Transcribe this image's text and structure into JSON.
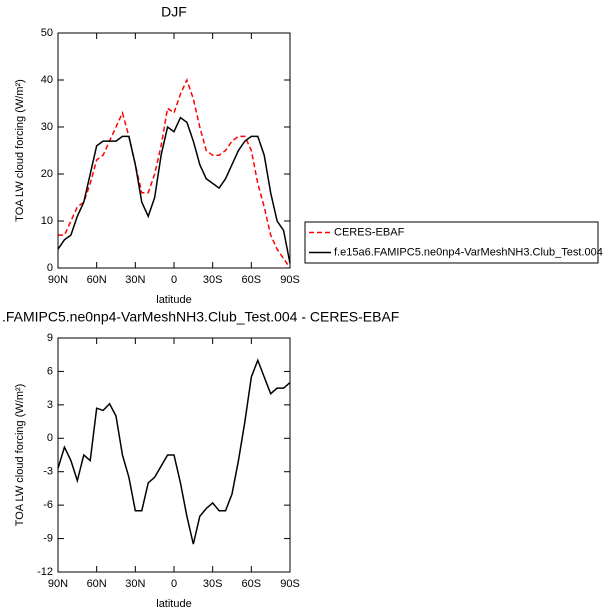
{
  "chart_data": [
    {
      "type": "line",
      "title": "DJF",
      "x_label": "latitude",
      "y_label": "TOA LW cloud forcing (W/m²)",
      "x": [
        90,
        85,
        80,
        75,
        70,
        65,
        60,
        55,
        50,
        45,
        40,
        35,
        30,
        25,
        20,
        15,
        10,
        5,
        0,
        -5,
        -10,
        -15,
        -20,
        -25,
        -30,
        -35,
        -40,
        -45,
        -50,
        -55,
        -60,
        -65,
        -70,
        -75,
        -80,
        -85,
        -90
      ],
      "xlim": [
        90,
        -90
      ],
      "xticks": [
        {
          "value": 90,
          "label": "90N"
        },
        {
          "value": 60,
          "label": "60N"
        },
        {
          "value": 30,
          "label": "30N"
        },
        0,
        {
          "value": -30,
          "label": "30S"
        },
        {
          "value": -60,
          "label": "60S"
        },
        {
          "value": -90,
          "label": "90S"
        }
      ],
      "ylim": [
        0,
        50
      ],
      "yticks": [
        0,
        10,
        20,
        30,
        40,
        50
      ],
      "legend": "right",
      "series": [
        {
          "name": "CERES-EBAF",
          "color": "#ff0000",
          "style": "dashed",
          "values": [
            7,
            7,
            10,
            13,
            14,
            18,
            23,
            24,
            27,
            30,
            33,
            28,
            22,
            16,
            16,
            20,
            26,
            34,
            33,
            37,
            40,
            36,
            30,
            25,
            24,
            24,
            25,
            27,
            28,
            28,
            25,
            18,
            13,
            7,
            4,
            2,
            0
          ]
        },
        {
          "name": "f.e15a6.FAMIPC5.ne0np4-VarMeshNH3.Club_Test.004",
          "color": "#000000",
          "style": "solid",
          "values": [
            4,
            6,
            7,
            11,
            14,
            20,
            26,
            27,
            27,
            27,
            28,
            28,
            22,
            14,
            11,
            15,
            24,
            30,
            29,
            32,
            31,
            27,
            22,
            19,
            18,
            17,
            19,
            22,
            25,
            27,
            28,
            28,
            24,
            16,
            10,
            8,
            1
          ]
        }
      ]
    },
    {
      "type": "line",
      "title": ".FAMIPC5.ne0np4-VarMeshNH3.Club_Test.004 - CERES-EBAF",
      "x_label": "latitude",
      "y_label": "TOA LW cloud forcing (W/m²)",
      "x": [
        90,
        85,
        80,
        75,
        70,
        65,
        60,
        55,
        50,
        45,
        40,
        35,
        30,
        25,
        20,
        15,
        10,
        5,
        0,
        -5,
        -10,
        -15,
        -20,
        -25,
        -30,
        -35,
        -40,
        -45,
        -50,
        -55,
        -60,
        -65,
        -70,
        -75,
        -80,
        -85,
        -90
      ],
      "xlim": [
        90,
        -90
      ],
      "xticks": [
        {
          "value": 90,
          "label": "90N"
        },
        {
          "value": 60,
          "label": "60N"
        },
        {
          "value": 30,
          "label": "30N"
        },
        0,
        {
          "value": -30,
          "label": "30S"
        },
        {
          "value": -60,
          "label": "60S"
        },
        {
          "value": -90,
          "label": "90S"
        }
      ],
      "ylim": [
        -12,
        9
      ],
      "yticks": [
        -12,
        -9,
        -6,
        -3,
        0,
        3,
        6,
        9
      ],
      "series": [
        {
          "color": "#000000",
          "style": "solid",
          "values": [
            -2.7,
            -0.8,
            -2,
            -3.8,
            -1.5,
            -2,
            2.7,
            2.5,
            3.1,
            2,
            -1.5,
            -3.5,
            -6.5,
            -6.5,
            -4,
            -3.5,
            -2.5,
            -1.5,
            -1.5,
            -4,
            -7,
            -9.5,
            -7,
            -6.3,
            -5.8,
            -6.5,
            -6.5,
            -5,
            -2,
            1.5,
            5.5,
            7,
            5.5,
            4,
            4.5,
            4.5,
            5
          ]
        }
      ]
    }
  ]
}
